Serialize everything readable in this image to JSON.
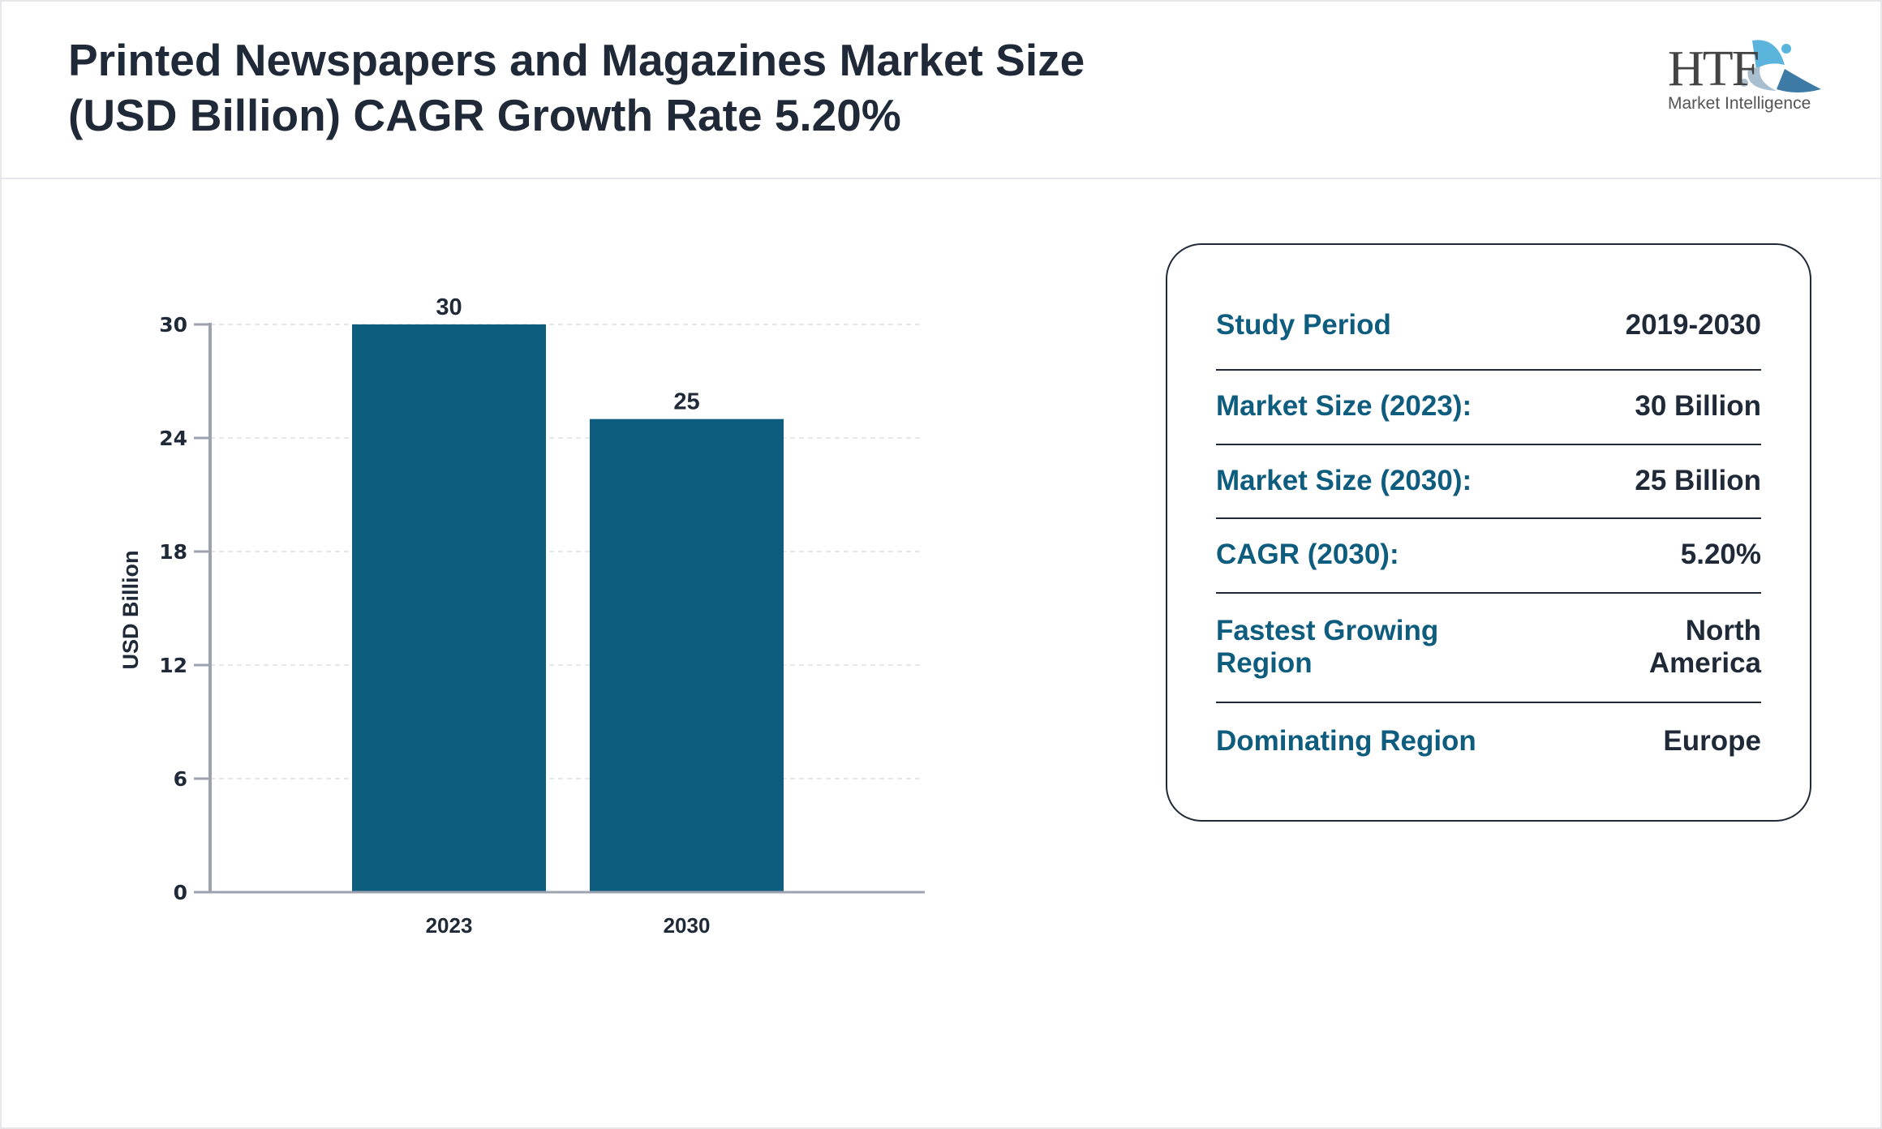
{
  "header": {
    "title_line1": "Printed Newspapers and Magazines Market Size",
    "title_line2": "(USD Billion) CAGR Growth Rate 5.20%",
    "logo": {
      "main": "HTF",
      "sub": "Market Intelligence"
    }
  },
  "chart_data": {
    "type": "bar",
    "categories": [
      "2023",
      "2030"
    ],
    "values": [
      30,
      25
    ],
    "data_labels": [
      "30",
      "25"
    ],
    "ylabel": "USD Billion",
    "xlabel": "",
    "ylim": [
      0,
      30
    ],
    "yticks": [
      0,
      6,
      12,
      18,
      24,
      30
    ],
    "grid": true,
    "bar_color": "#0e5c7e"
  },
  "info": {
    "rows": [
      {
        "label": "Study Period",
        "value": "2019-2030"
      },
      {
        "label": "Market Size (2023):",
        "value": "30 Billion"
      },
      {
        "label": "Market Size (2030):",
        "value": "25 Billion"
      },
      {
        "label": "CAGR (2030):",
        "value": "5.20%"
      },
      {
        "label": "Fastest Growing Region",
        "value": "North America"
      },
      {
        "label": "Dominating Region",
        "value": "Europe"
      }
    ]
  }
}
